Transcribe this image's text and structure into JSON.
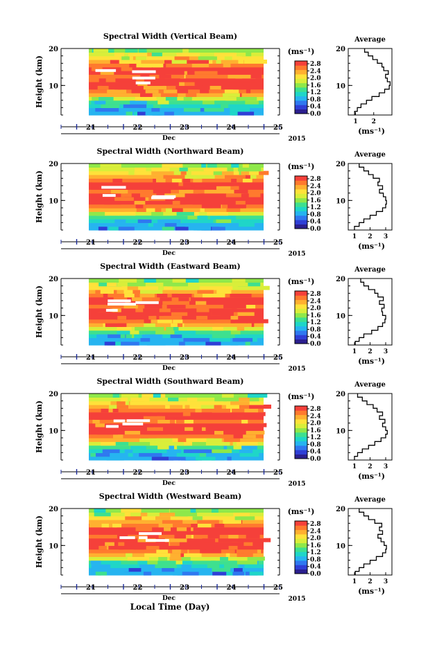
{
  "figure": {
    "xlabel": "Local Time (Day)",
    "month_label": "Dec",
    "year_label": "2015"
  },
  "colorbar": {
    "unit_label": "(ms⁻¹)",
    "colors": [
      "#2b1f8f",
      "#2f3fd6",
      "#2f78f0",
      "#26b4f0",
      "#1fd6c8",
      "#3ee08f",
      "#8fe84a",
      "#d9ee3a",
      "#ffe23a",
      "#ffb030",
      "#ff7a2e",
      "#f5403a"
    ]
  },
  "chart_data": [
    {
      "type": "heatmap",
      "title": "Spectral Width (Vertical Beam)",
      "ylabel": "Height (km)",
      "x_ticks": [
        "21",
        "22",
        "23",
        "24",
        "25"
      ],
      "y_ticks": [
        "10",
        "20"
      ],
      "ylim": [
        2,
        20
      ],
      "colorbar_ticks": [
        "0.0",
        "0.4",
        "0.8",
        "1.2",
        "1.6",
        "2.0",
        "2.4",
        "2.8"
      ],
      "profile": {
        "title": "Average",
        "xlabel": "(ms⁻¹)",
        "x_ticks": [
          "1",
          "2"
        ],
        "y_ticks": [
          "10",
          "20"
        ],
        "xlim": [
          0.6,
          3.0
        ],
        "heights": [
          2.5,
          3.5,
          4.5,
          5.5,
          6.5,
          7.5,
          8.5,
          9.5,
          10.5,
          11.5,
          12.5,
          13.5,
          14.5,
          15.5,
          16.5,
          17.5,
          18.5,
          19.5
        ],
        "values": [
          0.95,
          1.1,
          1.3,
          1.6,
          1.9,
          2.3,
          2.6,
          2.85,
          2.9,
          2.75,
          2.65,
          2.8,
          2.55,
          2.45,
          2.2,
          1.95,
          1.7,
          1.5
        ]
      }
    },
    {
      "type": "heatmap",
      "title": "Spectral Width (Northward Beam)",
      "ylabel": "Height (km)",
      "x_ticks": [
        "21",
        "22",
        "23",
        "24",
        "25"
      ],
      "y_ticks": [
        "10",
        "20"
      ],
      "ylim": [
        2,
        20
      ],
      "colorbar_ticks": [
        "0.0",
        "0.4",
        "0.8",
        "1.2",
        "1.6",
        "2.0",
        "2.4",
        "2.8"
      ],
      "profile": {
        "title": "Average",
        "xlabel": "(ms⁻¹)",
        "x_ticks": [
          "1",
          "2",
          "3"
        ],
        "y_ticks": [
          "10",
          "20"
        ],
        "xlim": [
          0.6,
          3.4
        ],
        "heights": [
          2.5,
          3.5,
          4.5,
          5.5,
          6.5,
          7.5,
          8.5,
          9.5,
          10.5,
          11.5,
          12.5,
          13.5,
          14.5,
          15.5,
          16.5,
          17.5,
          18.5,
          19.5
        ],
        "values": [
          1.0,
          1.3,
          1.6,
          2.0,
          2.4,
          2.8,
          3.0,
          3.05,
          3.0,
          2.85,
          2.6,
          2.8,
          2.5,
          2.6,
          2.2,
          1.9,
          1.6,
          1.3
        ]
      }
    },
    {
      "type": "heatmap",
      "title": "Spectral Width (Eastward Beam)",
      "ylabel": "Height (km)",
      "x_ticks": [
        "21",
        "22",
        "23",
        "24",
        "25"
      ],
      "y_ticks": [
        "10",
        "20"
      ],
      "ylim": [
        2,
        20
      ],
      "colorbar_ticks": [
        "0.0",
        "0.4",
        "0.8",
        "1.2",
        "1.6",
        "2.0",
        "2.4",
        "2.8"
      ],
      "profile": {
        "title": "Average",
        "xlabel": "(ms⁻¹)",
        "x_ticks": [
          "1",
          "2",
          "3"
        ],
        "y_ticks": [
          "10",
          "20"
        ],
        "xlim": [
          0.6,
          3.4
        ],
        "heights": [
          2.5,
          3.5,
          4.5,
          5.5,
          6.5,
          7.5,
          8.5,
          9.5,
          10.5,
          11.5,
          12.5,
          13.5,
          14.5,
          15.5,
          16.5,
          17.5,
          18.5,
          19.5
        ],
        "values": [
          1.05,
          1.3,
          1.6,
          2.1,
          2.5,
          2.8,
          2.95,
          3.0,
          2.8,
          2.75,
          2.9,
          2.6,
          2.85,
          2.5,
          2.3,
          1.9,
          1.6,
          1.4
        ]
      }
    },
    {
      "type": "heatmap",
      "title": "Spectral Width (Southward Beam)",
      "ylabel": "Height (km)",
      "x_ticks": [
        "21",
        "22",
        "23",
        "24",
        "25"
      ],
      "y_ticks": [
        "10",
        "20"
      ],
      "ylim": [
        2,
        20
      ],
      "colorbar_ticks": [
        "0.0",
        "0.4",
        "0.8",
        "1.2",
        "1.6",
        "2.0",
        "2.4",
        "2.8"
      ],
      "profile": {
        "title": "Average",
        "xlabel": "(ms⁻¹)",
        "x_ticks": [
          "1",
          "2",
          "3"
        ],
        "y_ticks": [
          "10",
          "20"
        ],
        "xlim": [
          0.6,
          3.4
        ],
        "heights": [
          2.5,
          3.5,
          4.5,
          5.5,
          6.5,
          7.5,
          8.5,
          9.5,
          10.5,
          11.5,
          12.5,
          13.5,
          14.5,
          15.5,
          16.5,
          17.5,
          18.5,
          19.5
        ],
        "values": [
          1.0,
          1.2,
          1.5,
          1.9,
          2.3,
          2.7,
          3.0,
          3.1,
          3.0,
          2.8,
          2.95,
          2.6,
          2.8,
          2.45,
          2.2,
          1.8,
          1.5,
          1.2
        ]
      }
    },
    {
      "type": "heatmap",
      "title": "Spectral Width (Westward Beam)",
      "ylabel": "Height (km)",
      "x_ticks": [
        "21",
        "22",
        "23",
        "24",
        "25"
      ],
      "y_ticks": [
        "10",
        "20"
      ],
      "ylim": [
        2,
        20
      ],
      "colorbar_ticks": [
        "0.0",
        "0.4",
        "0.8",
        "1.2",
        "1.6",
        "2.0",
        "2.4",
        "2.8"
      ],
      "profile": {
        "title": "Average",
        "xlabel": "(ms⁻¹)",
        "x_ticks": [
          "1",
          "2",
          "3"
        ],
        "y_ticks": [
          "10",
          "20"
        ],
        "xlim": [
          0.6,
          3.4
        ],
        "heights": [
          2.5,
          3.5,
          4.5,
          5.5,
          6.5,
          7.5,
          8.5,
          9.5,
          10.5,
          11.5,
          12.5,
          13.5,
          14.5,
          15.5,
          16.5,
          17.5,
          18.5,
          19.5
        ],
        "values": [
          1.05,
          1.3,
          1.6,
          2.0,
          2.4,
          2.8,
          3.0,
          3.05,
          2.9,
          2.7,
          2.5,
          2.8,
          2.6,
          2.75,
          2.3,
          1.9,
          1.6,
          1.3
        ]
      }
    }
  ]
}
